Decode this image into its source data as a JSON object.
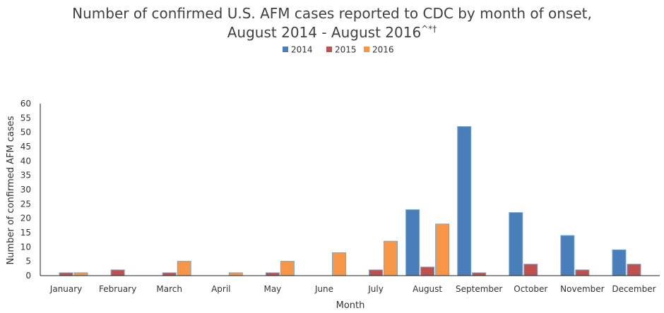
{
  "chart_data": {
    "type": "bar",
    "title_line1": "Number of confirmed U.S. AFM cases reported to CDC by month of onset,",
    "title_line2": "August 2014 - August 2016",
    "title_superscript": "^*†",
    "xlabel": "Month",
    "ylabel": "Number of confirmed AFM cases",
    "ylim": [
      0,
      60
    ],
    "yticks": [
      "0",
      "5",
      "10",
      "15",
      "20",
      "25",
      "30",
      "35",
      "40",
      "45",
      "50",
      "55",
      "60"
    ],
    "grid": false,
    "legend_position": "top-center",
    "categories": [
      "January",
      "February",
      "March",
      "April",
      "May",
      "June",
      "July",
      "August",
      "September",
      "October",
      "November",
      "December"
    ],
    "series": [
      {
        "name": "2014",
        "color": "#4a7ebb",
        "values": [
          null,
          null,
          null,
          null,
          null,
          null,
          null,
          23,
          52,
          22,
          14,
          9
        ]
      },
      {
        "name": "2015",
        "color": "#c0504d",
        "values": [
          1,
          2,
          1,
          null,
          1,
          null,
          2,
          3,
          1,
          4,
          2,
          4
        ]
      },
      {
        "name": "2016",
        "color": "#f79646",
        "values": [
          1,
          null,
          5,
          1,
          5,
          8,
          12,
          18,
          null,
          null,
          null,
          null
        ]
      }
    ]
  }
}
